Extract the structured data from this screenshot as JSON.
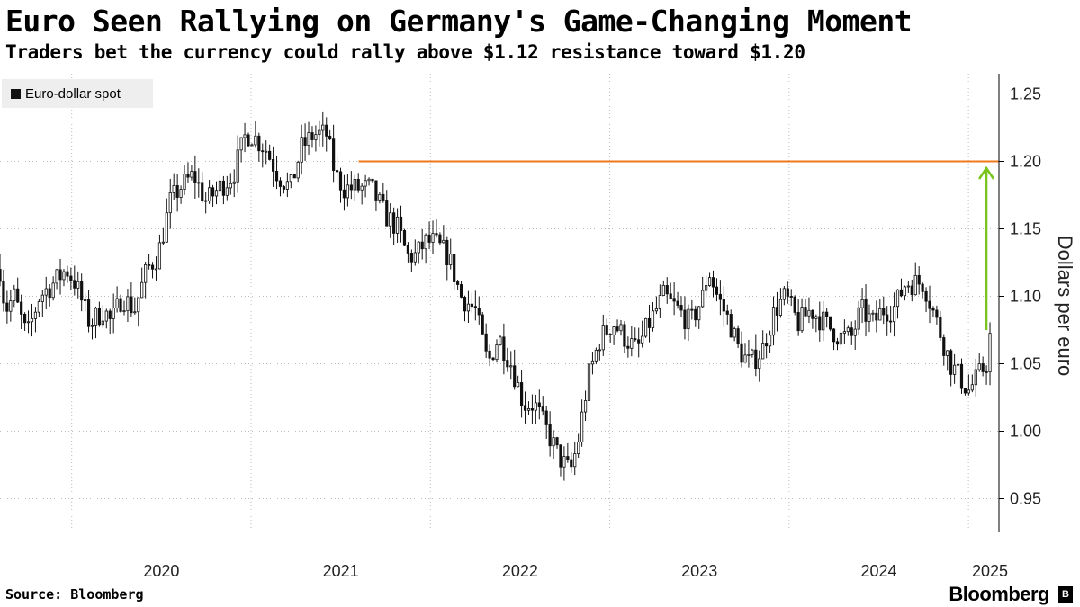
{
  "title": "Euro Seen Rallying on Germany's Game-Changing Moment",
  "subtitle": "Traders bet the currency could rally above $1.12 resistance toward $1.20",
  "source": "Source: Bloomberg",
  "brand": "Bloomberg",
  "colors": {
    "candle": "#111111",
    "resistance_line": "#f07a1a",
    "arrow": "#7ac41e",
    "grid": "#bbbbbb"
  },
  "chart_data": {
    "type": "candlestick",
    "title": "Euro Seen Rallying on Germany's Game-Changing Moment",
    "legend": [
      "Euro-dollar spot"
    ],
    "legend_position": "top-left",
    "ylabel": "Dollars per euro",
    "ylim": [
      0.925,
      1.265
    ],
    "yticks": [
      0.95,
      1.0,
      1.05,
      1.1,
      1.15,
      1.2,
      1.25
    ],
    "xlim": [
      2019.6,
      2025.17
    ],
    "xticks": [
      {
        "label": "2020",
        "pos": 2020.0
      },
      {
        "label": "2021",
        "pos": 2021.0
      },
      {
        "label": "2022",
        "pos": 2022.0
      },
      {
        "label": "2023",
        "pos": 2023.0
      },
      {
        "label": "2024",
        "pos": 2024.0
      },
      {
        "label": "2025",
        "pos": 2025.0
      }
    ],
    "grid": true,
    "resistance": {
      "value": 1.2,
      "from": 2021.6
    },
    "arrow": {
      "from_value": 1.075,
      "to_value": 1.195,
      "at": 2025.1,
      "direction": "up"
    },
    "series": [
      {
        "name": "Euro-dollar spot",
        "keypoints": [
          [
            2019.6,
            1.12
          ],
          [
            2019.63,
            1.09
          ],
          [
            2019.68,
            1.1
          ],
          [
            2019.75,
            1.07
          ],
          [
            2019.82,
            1.1
          ],
          [
            2019.9,
            1.11
          ],
          [
            2019.97,
            1.12
          ],
          [
            2020.02,
            1.11
          ],
          [
            2020.1,
            1.08
          ],
          [
            2020.18,
            1.09
          ],
          [
            2020.22,
            1.08
          ],
          [
            2020.28,
            1.1
          ],
          [
            2020.35,
            1.09
          ],
          [
            2020.42,
            1.12
          ],
          [
            2020.48,
            1.13
          ],
          [
            2020.55,
            1.17
          ],
          [
            2020.6,
            1.18
          ],
          [
            2020.68,
            1.19
          ],
          [
            2020.75,
            1.17
          ],
          [
            2020.82,
            1.18
          ],
          [
            2020.9,
            1.19
          ],
          [
            2020.97,
            1.22
          ],
          [
            2021.0,
            1.22
          ],
          [
            2021.08,
            1.21
          ],
          [
            2021.15,
            1.19
          ],
          [
            2021.22,
            1.18
          ],
          [
            2021.28,
            1.21
          ],
          [
            2021.35,
            1.22
          ],
          [
            2021.42,
            1.22
          ],
          [
            2021.47,
            1.19
          ],
          [
            2021.52,
            1.18
          ],
          [
            2021.6,
            1.18
          ],
          [
            2021.67,
            1.18
          ],
          [
            2021.75,
            1.16
          ],
          [
            2021.82,
            1.15
          ],
          [
            2021.87,
            1.13
          ],
          [
            2021.92,
            1.13
          ],
          [
            2021.97,
            1.14
          ],
          [
            2022.02,
            1.14
          ],
          [
            2022.1,
            1.13
          ],
          [
            2022.17,
            1.1
          ],
          [
            2022.25,
            1.09
          ],
          [
            2022.32,
            1.05
          ],
          [
            2022.38,
            1.07
          ],
          [
            2022.45,
            1.05
          ],
          [
            2022.52,
            1.02
          ],
          [
            2022.58,
            1.02
          ],
          [
            2022.65,
            1.0
          ],
          [
            2022.72,
            0.98
          ],
          [
            2022.78,
            0.97
          ],
          [
            2022.82,
            0.99
          ],
          [
            2022.88,
            1.04
          ],
          [
            2022.95,
            1.07
          ],
          [
            2023.02,
            1.08
          ],
          [
            2023.08,
            1.07
          ],
          [
            2023.15,
            1.06
          ],
          [
            2023.22,
            1.08
          ],
          [
            2023.3,
            1.1
          ],
          [
            2023.38,
            1.09
          ],
          [
            2023.45,
            1.08
          ],
          [
            2023.52,
            1.1
          ],
          [
            2023.55,
            1.12
          ],
          [
            2023.6,
            1.1
          ],
          [
            2023.67,
            1.08
          ],
          [
            2023.72,
            1.06
          ],
          [
            2023.78,
            1.05
          ],
          [
            2023.85,
            1.06
          ],
          [
            2023.92,
            1.09
          ],
          [
            2023.98,
            1.1
          ],
          [
            2024.05,
            1.08
          ],
          [
            2024.12,
            1.09
          ],
          [
            2024.2,
            1.08
          ],
          [
            2024.28,
            1.07
          ],
          [
            2024.35,
            1.07
          ],
          [
            2024.4,
            1.09
          ],
          [
            2024.47,
            1.08
          ],
          [
            2024.52,
            1.09
          ],
          [
            2024.58,
            1.09
          ],
          [
            2024.65,
            1.11
          ],
          [
            2024.7,
            1.11
          ],
          [
            2024.75,
            1.11
          ],
          [
            2024.8,
            1.09
          ],
          [
            2024.85,
            1.07
          ],
          [
            2024.9,
            1.05
          ],
          [
            2024.95,
            1.04
          ],
          [
            2025.0,
            1.03
          ],
          [
            2025.05,
            1.04
          ],
          [
            2025.1,
            1.05
          ],
          [
            2025.12,
            1.07
          ]
        ]
      }
    ]
  }
}
